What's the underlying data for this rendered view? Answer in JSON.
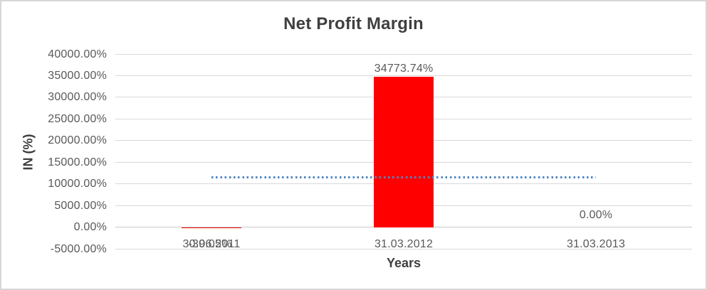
{
  "chart_data": {
    "type": "bar",
    "title": "Net Profit Margin",
    "xlabel": "Years",
    "ylabel": "IN (%)",
    "categories": [
      "30.06.2011",
      "31.03.2012",
      "31.03.2013"
    ],
    "series": [
      {
        "name": "Net Profit Margin",
        "values": [
          -39.05,
          34773.74,
          0
        ],
        "data_labels": [
          "-39.05%",
          "34773.74%",
          "0.00%"
        ],
        "color": "#FF0000"
      }
    ],
    "ylim": [
      -5000,
      40000
    ],
    "ytick_step": 5000,
    "ytick_labels": [
      "40000.00%",
      "35000.00%",
      "30000.00%",
      "25000.00%",
      "20000.00%",
      "15000.00%",
      "10000.00%",
      "5000.00%",
      "0.00%",
      "-5000.00%"
    ],
    "grid": true,
    "legend": "none",
    "trendline": {
      "type": "linear",
      "style": "dotted",
      "color": "#4E86C4",
      "approx_value": 11578
    }
  },
  "colors": {
    "title_text": "#3F3F3F",
    "axis_text": "#595959",
    "gridline": "#D9D9D9",
    "zero_line": "#C9C9C9",
    "bar": "#FF0000",
    "trendline": "#4E86C4",
    "border": "#D6D6D6",
    "background": "#FFFFFF"
  }
}
